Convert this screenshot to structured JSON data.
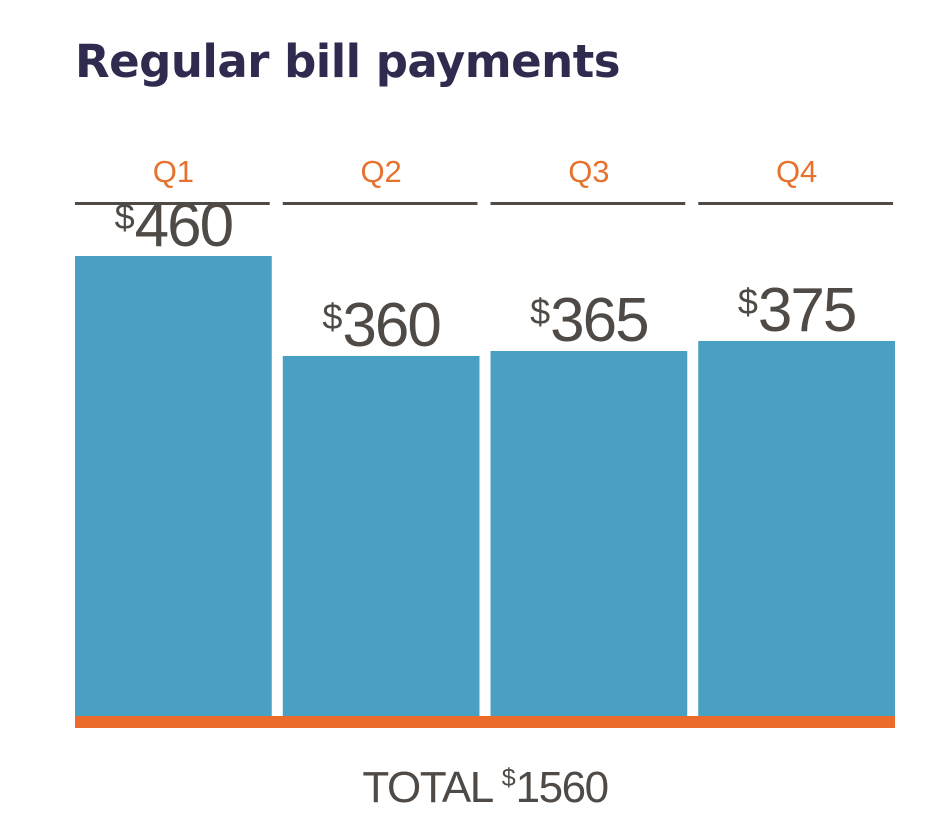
{
  "chart_data": {
    "type": "bar",
    "title": "Regular bill payments",
    "categories": [
      "Q1",
      "Q2",
      "Q3",
      "Q4"
    ],
    "values": [
      460,
      360,
      365,
      375
    ],
    "value_prefix": "$",
    "ylim": [
      0,
      500
    ],
    "grid": false,
    "total": {
      "label": "TOTAL",
      "currency": "$",
      "value": "1560"
    }
  },
  "colors": {
    "title": "#2e2b4f",
    "bar": "#4aa0c2",
    "quarter_label": "#e5722f",
    "separator": "#4f4a45",
    "value_text": "#4f4a45",
    "baseline": "#ea6b2c",
    "total_text": "#4f4a45"
  }
}
